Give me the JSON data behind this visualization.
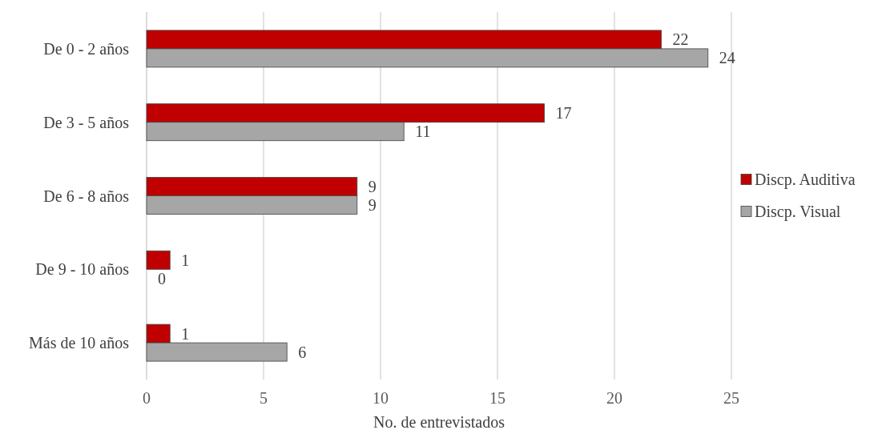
{
  "chart_data": {
    "type": "bar",
    "orientation": "horizontal",
    "xlabel": "No. de entrevistados",
    "categories": [
      "De 0 - 2 años",
      "De 3 - 5 años",
      "De 6 - 8 años",
      "De 9 - 10 años",
      "Más de 10 años"
    ],
    "series": [
      {
        "name": "Discp. Auditiva",
        "color": "#c00000",
        "values": [
          22,
          17,
          9,
          1,
          1
        ]
      },
      {
        "name": "Discp. Visual",
        "color": "#a6a6a6",
        "values": [
          24,
          11,
          9,
          0,
          6
        ]
      }
    ],
    "xlim": [
      0,
      25
    ],
    "xticks": [
      0,
      5,
      10,
      15,
      20,
      25
    ],
    "grid": "x",
    "legend": "right",
    "data_labels": true
  }
}
